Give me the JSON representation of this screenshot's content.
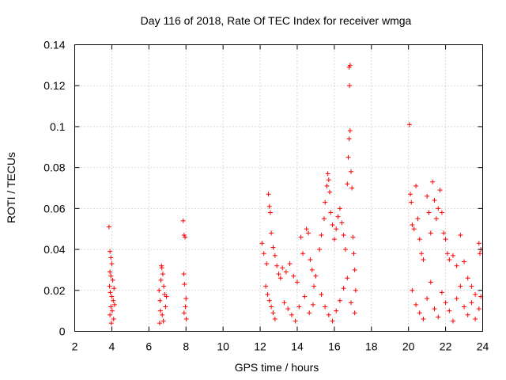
{
  "chart_data": {
    "type": "scatter",
    "title": "Day 116 of 2018, Rate Of TEC Index for receiver wmga",
    "xlabel": "GPS time / hours",
    "ylabel": "ROTI / TECUs",
    "xlim": [
      2,
      24
    ],
    "ylim": [
      0,
      0.14
    ],
    "x_ticks": [
      2,
      4,
      6,
      8,
      10,
      12,
      14,
      16,
      18,
      20,
      22,
      24
    ],
    "x_tick_labels": [
      "2",
      "4",
      "6",
      "8",
      "10",
      "12",
      "14",
      "16",
      "18",
      "20",
      "22",
      "24"
    ],
    "y_ticks": [
      0,
      0.02,
      0.04,
      0.06,
      0.08,
      0.1,
      0.12,
      0.14
    ],
    "y_tick_labels": [
      "0",
      "0.02",
      "0.04",
      "0.06",
      "0.08",
      "0.1",
      "0.12",
      "0.14"
    ],
    "grid": true,
    "marker": "+",
    "marker_color": "#ff0000",
    "series": [
      {
        "name": "ROTI",
        "points": [
          [
            3.85,
            0.051
          ],
          [
            3.9,
            0.039
          ],
          [
            3.95,
            0.036
          ],
          [
            4.0,
            0.033
          ],
          [
            3.9,
            0.029
          ],
          [
            3.95,
            0.027
          ],
          [
            4.05,
            0.025
          ],
          [
            3.88,
            0.022
          ],
          [
            3.92,
            0.019
          ],
          [
            4.0,
            0.017
          ],
          [
            4.08,
            0.015
          ],
          [
            3.95,
            0.012
          ],
          [
            4.02,
            0.01
          ],
          [
            3.9,
            0.008
          ],
          [
            4.1,
            0.006
          ],
          [
            3.97,
            0.004
          ],
          [
            4.12,
            0.021
          ],
          [
            4.15,
            0.013
          ],
          [
            6.55,
            0.02
          ],
          [
            6.6,
            0.015
          ],
          [
            6.65,
            0.025
          ],
          [
            6.7,
            0.031
          ],
          [
            6.75,
            0.028
          ],
          [
            6.8,
            0.022
          ],
          [
            6.85,
            0.018
          ],
          [
            6.9,
            0.012
          ],
          [
            6.72,
            0.008
          ],
          [
            6.78,
            0.005
          ],
          [
            6.62,
            0.01
          ],
          [
            6.95,
            0.017
          ],
          [
            6.68,
            0.032
          ],
          [
            6.58,
            0.004
          ],
          [
            7.85,
            0.054
          ],
          [
            7.9,
            0.047
          ],
          [
            7.95,
            0.046
          ],
          [
            7.88,
            0.028
          ],
          [
            7.92,
            0.023
          ],
          [
            8.0,
            0.016
          ],
          [
            7.97,
            0.012
          ],
          [
            7.9,
            0.009
          ],
          [
            8.02,
            0.006
          ],
          [
            12.1,
            0.043
          ],
          [
            12.2,
            0.038
          ],
          [
            12.35,
            0.033
          ],
          [
            12.45,
            0.067
          ],
          [
            12.5,
            0.061
          ],
          [
            12.55,
            0.058
          ],
          [
            12.6,
            0.048
          ],
          [
            12.7,
            0.041
          ],
          [
            12.8,
            0.037
          ],
          [
            12.9,
            0.032
          ],
          [
            13.0,
            0.028
          ],
          [
            13.1,
            0.026
          ],
          [
            12.3,
            0.022
          ],
          [
            12.4,
            0.018
          ],
          [
            12.5,
            0.015
          ],
          [
            12.6,
            0.012
          ],
          [
            12.7,
            0.009
          ],
          [
            12.8,
            0.006
          ],
          [
            13.2,
            0.031
          ],
          [
            13.4,
            0.029
          ],
          [
            13.6,
            0.033
          ],
          [
            13.8,
            0.027
          ],
          [
            14.0,
            0.024
          ],
          [
            14.2,
            0.046
          ],
          [
            14.3,
            0.038
          ],
          [
            14.5,
            0.05
          ],
          [
            14.6,
            0.048
          ],
          [
            14.7,
            0.035
          ],
          [
            14.8,
            0.03
          ],
          [
            14.9,
            0.022
          ],
          [
            13.3,
            0.014
          ],
          [
            13.5,
            0.011
          ],
          [
            13.7,
            0.008
          ],
          [
            13.9,
            0.005
          ],
          [
            14.1,
            0.012
          ],
          [
            14.4,
            0.017
          ],
          [
            14.65,
            0.009
          ],
          [
            14.85,
            0.013
          ],
          [
            15.0,
            0.027
          ],
          [
            15.2,
            0.04
          ],
          [
            15.3,
            0.047
          ],
          [
            15.45,
            0.055
          ],
          [
            15.5,
            0.063
          ],
          [
            15.6,
            0.071
          ],
          [
            15.65,
            0.077
          ],
          [
            15.7,
            0.074
          ],
          [
            15.75,
            0.068
          ],
          [
            15.8,
            0.058
          ],
          [
            15.9,
            0.052
          ],
          [
            16.0,
            0.045
          ],
          [
            16.1,
            0.05
          ],
          [
            16.2,
            0.056
          ],
          [
            16.3,
            0.06
          ],
          [
            16.4,
            0.053
          ],
          [
            16.5,
            0.047
          ],
          [
            16.6,
            0.04
          ],
          [
            16.7,
            0.072
          ],
          [
            16.75,
            0.085
          ],
          [
            16.8,
            0.094
          ],
          [
            16.85,
            0.098
          ],
          [
            16.82,
            0.12
          ],
          [
            16.8,
            0.129
          ],
          [
            16.85,
            0.13
          ],
          [
            16.9,
            0.078
          ],
          [
            16.95,
            0.07
          ],
          [
            17.0,
            0.046
          ],
          [
            17.05,
            0.038
          ],
          [
            17.1,
            0.03
          ],
          [
            17.15,
            0.02
          ],
          [
            15.3,
            0.018
          ],
          [
            15.5,
            0.012
          ],
          [
            15.7,
            0.008
          ],
          [
            15.9,
            0.005
          ],
          [
            16.1,
            0.01
          ],
          [
            16.3,
            0.015
          ],
          [
            16.5,
            0.021
          ],
          [
            16.7,
            0.026
          ],
          [
            16.9,
            0.014
          ],
          [
            17.1,
            0.009
          ],
          [
            20.05,
            0.101
          ],
          [
            20.1,
            0.067
          ],
          [
            20.15,
            0.063
          ],
          [
            20.2,
            0.052
          ],
          [
            20.3,
            0.05
          ],
          [
            20.4,
            0.071
          ],
          [
            20.5,
            0.055
          ],
          [
            20.6,
            0.045
          ],
          [
            20.7,
            0.038
          ],
          [
            20.8,
            0.035
          ],
          [
            21.0,
            0.066
          ],
          [
            21.1,
            0.058
          ],
          [
            21.2,
            0.048
          ],
          [
            21.3,
            0.073
          ],
          [
            21.4,
            0.064
          ],
          [
            21.5,
            0.055
          ],
          [
            21.6,
            0.06
          ],
          [
            21.7,
            0.069
          ],
          [
            21.8,
            0.058
          ],
          [
            21.9,
            0.048
          ],
          [
            22.0,
            0.045
          ],
          [
            22.1,
            0.038
          ],
          [
            22.2,
            0.035
          ],
          [
            22.4,
            0.037
          ],
          [
            22.6,
            0.032
          ],
          [
            22.8,
            0.047
          ],
          [
            23.0,
            0.034
          ],
          [
            23.2,
            0.026
          ],
          [
            23.4,
            0.022
          ],
          [
            23.6,
            0.018
          ],
          [
            23.8,
            0.043
          ],
          [
            23.85,
            0.038
          ],
          [
            23.9,
            0.04
          ],
          [
            20.2,
            0.02
          ],
          [
            20.4,
            0.013
          ],
          [
            20.6,
            0.009
          ],
          [
            20.8,
            0.006
          ],
          [
            21.0,
            0.016
          ],
          [
            21.2,
            0.024
          ],
          [
            21.4,
            0.011
          ],
          [
            21.6,
            0.007
          ],
          [
            21.8,
            0.019
          ],
          [
            22.0,
            0.014
          ],
          [
            22.2,
            0.01
          ],
          [
            22.4,
            0.005
          ],
          [
            22.6,
            0.016
          ],
          [
            22.8,
            0.022
          ],
          [
            23.0,
            0.012
          ],
          [
            23.2,
            0.008
          ],
          [
            23.4,
            0.014
          ],
          [
            23.6,
            0.006
          ],
          [
            23.8,
            0.011
          ],
          [
            23.9,
            0.017
          ]
        ]
      }
    ]
  }
}
